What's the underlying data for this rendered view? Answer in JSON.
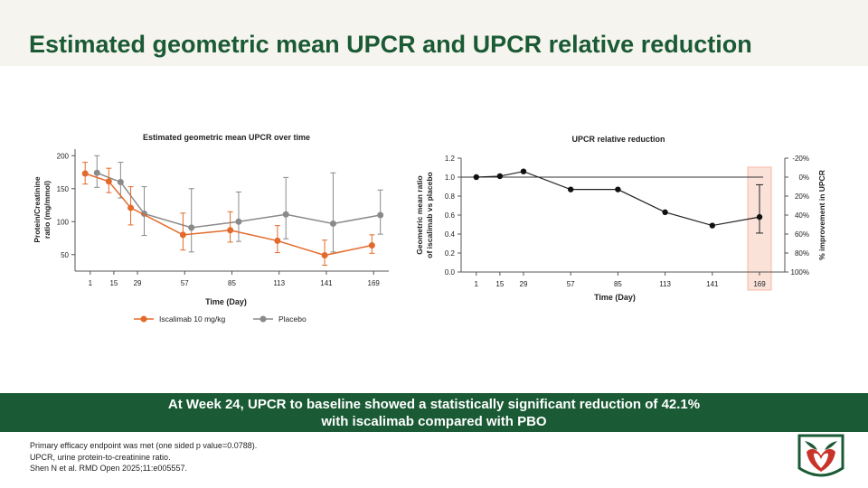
{
  "slide": {
    "title": "Estimated geometric mean UPCR and UPCR relative reduction",
    "banner_line1": "At Week 24, UPCR to baseline showed a statistically significant reduction of 42.1%",
    "banner_line2": "with iscalimab compared with PBO",
    "footnotes": [
      "Primary efficacy endpoint was met (one sided p value=0.0788).",
      "UPCR, urine protein-to-creatinine ratio.",
      "Shen N et al. RMD Open 2025;11:e005557."
    ]
  },
  "colors": {
    "brand_green": "#1a5a34",
    "iscalimab": "#e36a2a",
    "placebo": "#8a8a8a",
    "highlight": "#f4b8a5"
  },
  "chart_data": [
    {
      "type": "line",
      "title": "Estimated geometric mean UPCR over time",
      "xlabel": "Time (Day)",
      "ylabel": "Protein/Creatinine ratio (mg/mmol)",
      "x": [
        1,
        15,
        29,
        57,
        85,
        113,
        141,
        169
      ],
      "xticks": [
        "1",
        "15",
        "29",
        "57",
        "85",
        "113",
        "141",
        "169"
      ],
      "yticks": [
        50,
        100,
        150,
        200
      ],
      "ylim": [
        25,
        210
      ],
      "legend_position": "bottom",
      "series": [
        {
          "name": "Iscalimab 10 mg/kg",
          "color": "#e36a2a",
          "x": [
            -2,
            12,
            25,
            56,
            84,
            112,
            140,
            168
          ],
          "values": [
            173,
            161,
            121,
            80,
            87,
            71,
            49,
            64
          ],
          "err_low": [
            157,
            144,
            95,
            57,
            69,
            53,
            34,
            52
          ],
          "err_high": [
            190,
            181,
            153,
            113,
            115,
            94,
            72,
            80
          ]
        },
        {
          "name": "Placebo",
          "color": "#8a8a8a",
          "x": [
            5,
            19,
            33,
            61,
            89,
            117,
            145,
            173
          ],
          "values": [
            174,
            160,
            112,
            91,
            100,
            111,
            97,
            110
          ],
          "err_low": [
            152,
            136,
            79,
            54,
            70,
            74,
            54,
            81
          ],
          "err_high": [
            200,
            190,
            153,
            150,
            145,
            167,
            174,
            148
          ]
        }
      ]
    },
    {
      "type": "line",
      "title": "UPCR relative reduction",
      "xlabel": "Time (Day)",
      "ylabel": "Geometric mean ratio of iscalimab vs placebo",
      "y2label": "% improvement in UPCR",
      "x": [
        1,
        15,
        29,
        57,
        85,
        113,
        141,
        169
      ],
      "xticks": [
        "1",
        "15",
        "29",
        "57",
        "85",
        "113",
        "141",
        "169"
      ],
      "yticks": [
        "0.0",
        "0.2",
        "0.4",
        "0.6",
        "0.8",
        "1.0",
        "1.2"
      ],
      "y2ticks": [
        "-20%",
        "0%",
        "20%",
        "40%",
        "60%",
        "80%",
        "100%"
      ],
      "ylim": [
        0,
        1.2
      ],
      "reference_line": 1.0,
      "highlight_x": 169,
      "values": [
        1.0,
        1.01,
        1.06,
        0.87,
        0.87,
        0.63,
        0.49,
        0.58
      ],
      "err_low": [
        null,
        null,
        null,
        null,
        null,
        null,
        null,
        0.41
      ],
      "err_high": [
        null,
        null,
        null,
        null,
        null,
        null,
        null,
        0.92
      ]
    }
  ]
}
